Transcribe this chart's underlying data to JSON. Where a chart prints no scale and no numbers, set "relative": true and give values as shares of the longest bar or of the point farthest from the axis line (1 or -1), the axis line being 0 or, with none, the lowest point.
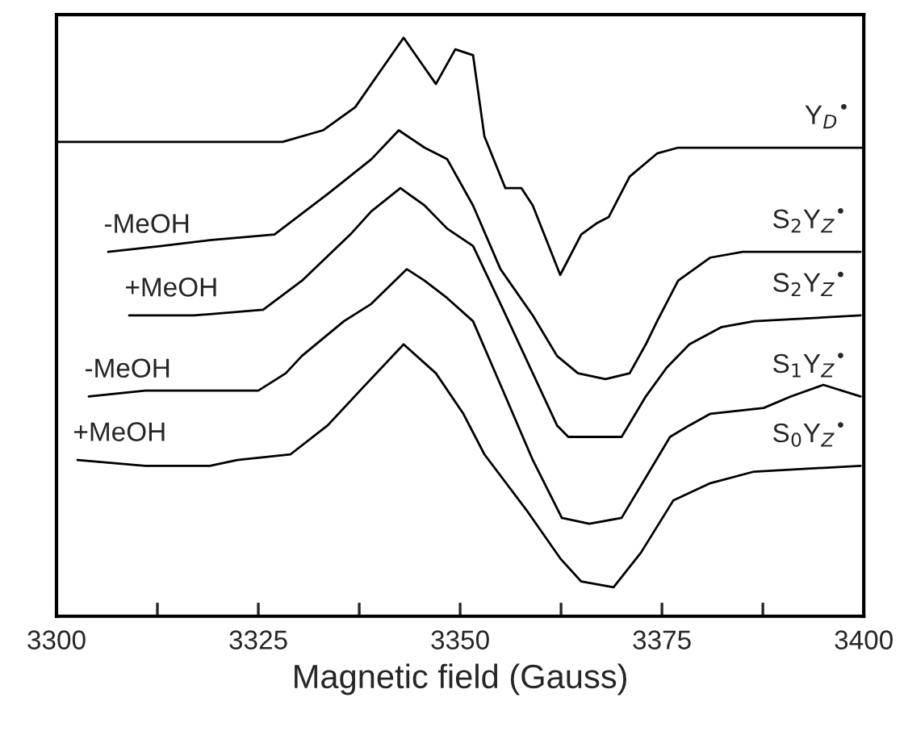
{
  "chart_data": {
    "type": "line",
    "relative": true,
    "xlabel": "Magnetic field (Gauss)",
    "xlim": [
      3300,
      3400
    ],
    "xticks": [
      3300,
      {
        "value": 3312.5,
        "label": null
      },
      3325,
      {
        "value": 3337.5,
        "label": null
      },
      3350,
      {
        "value": 3362.5,
        "label": null
      },
      3375,
      {
        "value": 3387.5,
        "label": null
      },
      3400
    ],
    "tick_labels": "x",
    "grid": false,
    "legend": false,
    "marker": "none",
    "line_style": "solid",
    "series": [
      {
        "name": "Y$_{D}$$^{•}$",
        "color": "#000000",
        "x": [
          3300,
          3328,
          3333,
          3337,
          3340,
          3343,
          3345,
          3347,
          3349.4,
          3351.6,
          3353,
          3355.6,
          3357.6,
          3359,
          3362.4,
          3365,
          3367,
          3368.4,
          3371,
          3374.4,
          3377,
          3400
        ],
        "values": [
          0.82,
          0.82,
          0.84,
          0.88,
          0.94,
          1.0,
          0.96,
          0.92,
          0.98,
          0.97,
          0.83,
          0.74,
          0.74,
          0.71,
          0.59,
          0.66,
          0.68,
          0.69,
          0.76,
          0.8,
          0.81,
          0.81
        ]
      },
      {
        "name": "S$_{2}$Y$_{Z}$$^{•}$",
        "color": "#000000",
        "x": [
          3306.4,
          3313,
          3319,
          3327,
          3333.6,
          3339,
          3342.4,
          3345.6,
          3348.4,
          3351.6,
          3355,
          3359,
          3362,
          3364.6,
          3368,
          3371,
          3373,
          3374.4,
          3377,
          3381,
          3385,
          3399.6
        ],
        "values": [
          0.63,
          0.64,
          0.65,
          0.66,
          0.73,
          0.79,
          0.84,
          0.81,
          0.79,
          0.71,
          0.6,
          0.52,
          0.45,
          0.42,
          0.41,
          0.42,
          0.47,
          0.51,
          0.58,
          0.62,
          0.63,
          0.63
        ]
      },
      {
        "name": "S$_{2}$Y$_{Z}$$^{•}$",
        "color": "#000000",
        "x": [
          3309,
          3317,
          3325.6,
          3330.4,
          3336.4,
          3339,
          3342.6,
          3345.6,
          3348.4,
          3351.6,
          3355,
          3359,
          3362,
          3363.4,
          3366.6,
          3370,
          3373,
          3375.6,
          3378.4,
          3382.4,
          3386.4,
          3399.6
        ],
        "values": [
          0.52,
          0.52,
          0.53,
          0.58,
          0.66,
          0.7,
          0.74,
          0.71,
          0.67,
          0.64,
          0.54,
          0.42,
          0.33,
          0.31,
          0.31,
          0.31,
          0.38,
          0.43,
          0.47,
          0.5,
          0.51,
          0.52
        ]
      },
      {
        "name": "S$_{1}$Y$_{Z}$$^{•}$",
        "color": "#000000",
        "x": [
          3304,
          3311,
          3319,
          3325,
          3328.4,
          3330.4,
          3335.6,
          3339,
          3343.4,
          3345.6,
          3348.4,
          3351.6,
          3355,
          3359,
          3362.6,
          3366,
          3370,
          3373,
          3376,
          3378.4,
          3381,
          3387.6,
          3391,
          3395,
          3399.6
        ],
        "values": [
          0.38,
          0.39,
          0.39,
          0.39,
          0.42,
          0.45,
          0.51,
          0.54,
          0.6,
          0.58,
          0.55,
          0.51,
          0.4,
          0.27,
          0.17,
          0.16,
          0.17,
          0.24,
          0.31,
          0.33,
          0.35,
          0.36,
          0.38,
          0.4,
          0.38
        ]
      },
      {
        "name": "S$_{0}$Y$_{Z}$$^{•}$",
        "color": "#000000",
        "x": [
          3302.6,
          3311,
          3319,
          3322.4,
          3329,
          3333.6,
          3337.6,
          3343,
          3347,
          3350.4,
          3353,
          3358.4,
          3362.4,
          3365,
          3369,
          3372.4,
          3376.4,
          3381,
          3386.4,
          3399.6
        ],
        "values": [
          0.27,
          0.26,
          0.26,
          0.27,
          0.28,
          0.33,
          0.39,
          0.47,
          0.42,
          0.35,
          0.28,
          0.18,
          0.1,
          0.06,
          0.05,
          0.11,
          0.2,
          0.23,
          0.25,
          0.26
        ]
      }
    ],
    "annotations": [
      {
        "text": "-MeOH",
        "x": 3306.4,
        "y": 0.63
      },
      {
        "text": "+MeOH",
        "x": 3309,
        "y": 0.52
      },
      {
        "text": "-MeOH",
        "x": 3304,
        "y": 0.38
      },
      {
        "text": "+MeOH",
        "x": 3302.6,
        "y": 0.27
      }
    ]
  }
}
